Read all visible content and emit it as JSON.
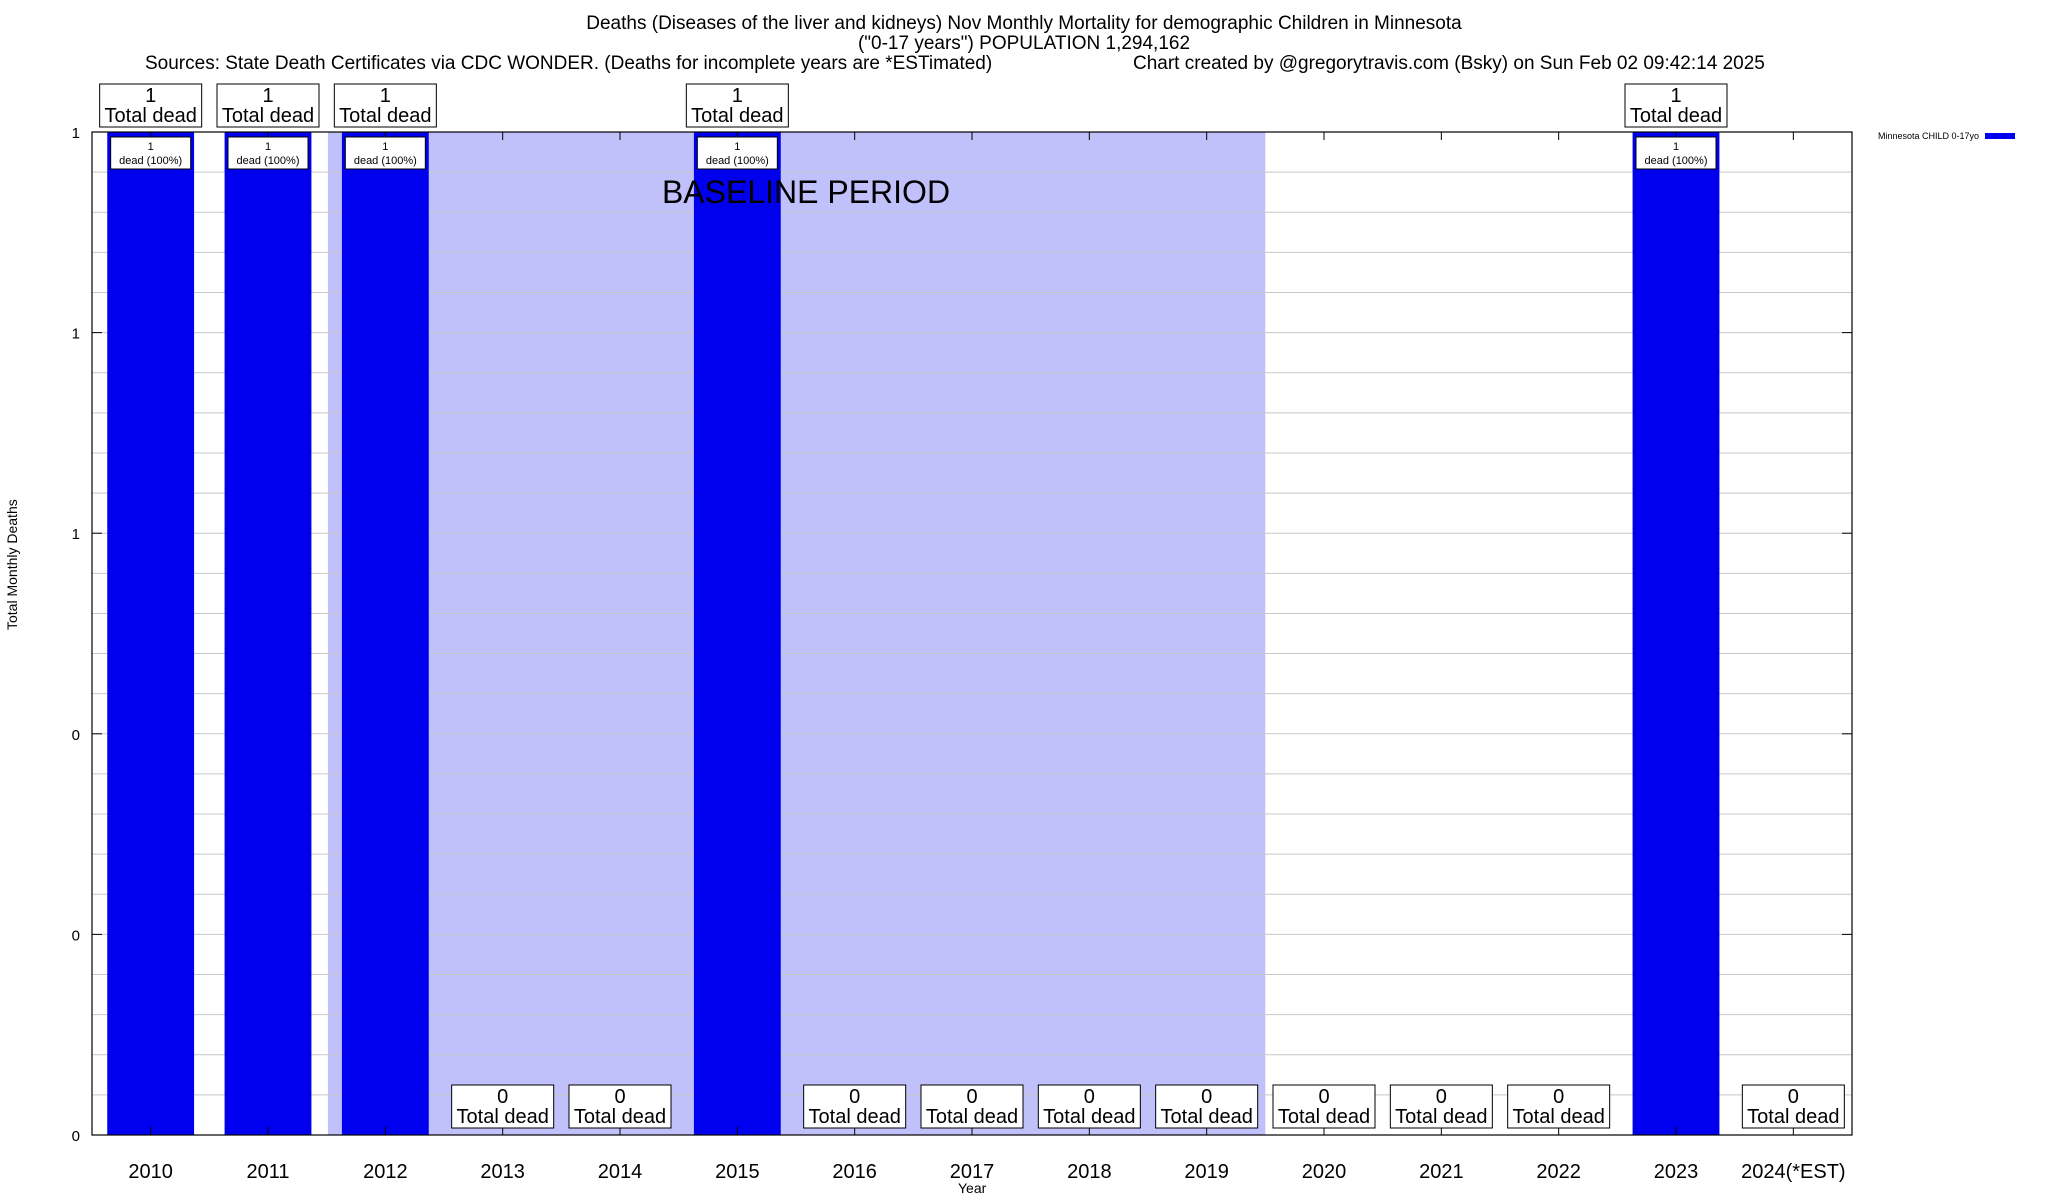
{
  "chart_data": {
    "type": "bar",
    "title": "Deaths (Diseases of the liver and kidneys) Nov Monthly Mortality for demographic Children in Minnesota",
    "subtitle": "(\"0-17 years\") POPULATION 1,294,162",
    "sources": "Sources: State Death Certificates via CDC WONDER. (Deaths for incomplete years are *ESTimated)",
    "credit": "Chart created by @gregorytravis.com (Bsky) on Sun Feb 02 09:42:14 2025",
    "xlabel": "Year",
    "ylabel": "Total Monthly Deaths",
    "categories": [
      "2010",
      "2011",
      "2012",
      "2013",
      "2014",
      "2015",
      "2016",
      "2017",
      "2018",
      "2019",
      "2020",
      "2021",
      "2022",
      "2023",
      "2024(*EST)"
    ],
    "series": [
      {
        "name": "Minnesota CHILD 0-17yo",
        "values": [
          1,
          1,
          1,
          0,
          0,
          1,
          0,
          0,
          0,
          0,
          0,
          0,
          0,
          1,
          0
        ],
        "color": "#0000ee"
      }
    ],
    "top_label_text": "Total dead",
    "inner_label_text": "dead (100%)",
    "ylim": [
      0,
      1
    ],
    "y_tick_labels": [
      "0",
      "0",
      "0",
      "1",
      "1",
      "1"
    ],
    "y_tick_values": [
      0,
      0.2,
      0.4,
      0.6,
      0.8,
      1.0
    ],
    "baseline_period": {
      "label": "BASELINE PERIOD",
      "from": "2012",
      "to": "2019",
      "color": "#c0c0fa"
    },
    "grid": true,
    "legend_position": "top-right"
  }
}
